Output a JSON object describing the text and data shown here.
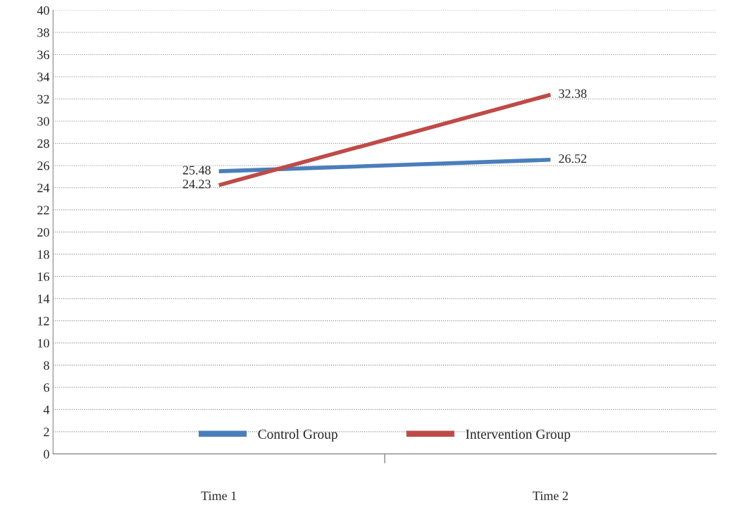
{
  "chart_data": {
    "type": "line",
    "categories": [
      "Time 1",
      "Time 2"
    ],
    "series": [
      {
        "name": "Control Group",
        "color": "#4a7ebb",
        "values": [
          25.48,
          26.52
        ]
      },
      {
        "name": "Intervention Group",
        "color": "#be4b48",
        "values": [
          24.23,
          32.38
        ]
      }
    ],
    "ylim": [
      0,
      40
    ],
    "yticks": [
      0,
      2,
      4,
      6,
      8,
      10,
      12,
      14,
      16,
      18,
      20,
      22,
      24,
      26,
      28,
      30,
      32,
      34,
      36,
      38,
      40
    ],
    "grid": "y",
    "legend": "bottom",
    "data_labels": true,
    "marker": "none",
    "line_style": "solid"
  }
}
